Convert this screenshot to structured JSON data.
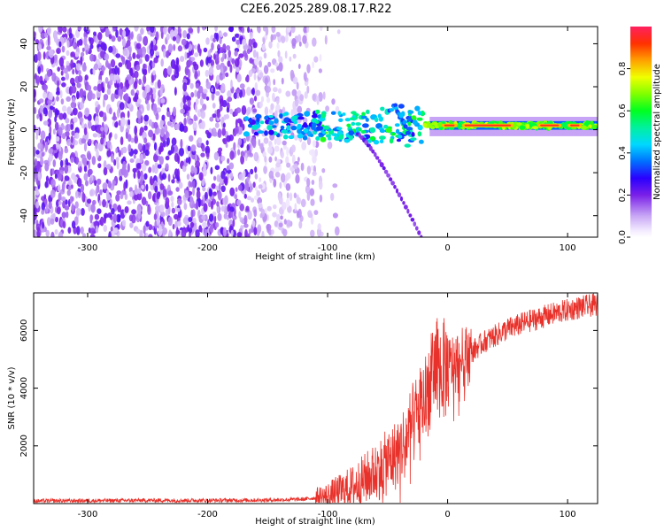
{
  "title": "C2E6.2025.289.08.17.R22",
  "chart_data": [
    {
      "type": "heatmap",
      "name": "spectrogram",
      "title": "C2E6.2025.289.08.17.R22",
      "xlabel": "Height of straight line (km)",
      "ylabel": "Frequency (Hz)",
      "xlim": [
        -345,
        125
      ],
      "ylim": [
        -50,
        48
      ],
      "xticks": [
        -300,
        -200,
        -100,
        0,
        100
      ],
      "yticks": [
        -40,
        -20,
        0,
        20,
        40
      ],
      "colorbar": {
        "label": "Normalized spectral amplitude",
        "range": [
          0.0,
          1.0
        ],
        "ticks": [
          0.0,
          0.2,
          0.4,
          0.6,
          0.8
        ],
        "tick_labels": [
          "0.0",
          "0.2",
          "0.4",
          "0.6",
          "0.8"
        ]
      },
      "features": [
        {
          "name": "noise-field",
          "x_range": [
            -345,
            -100
          ],
          "freq_range": [
            -50,
            48
          ],
          "amplitude": 0.05
        },
        {
          "name": "carrier-line",
          "x_range": [
            -170,
            125
          ],
          "freq": 2,
          "amplitude_range": [
            0.3,
            1.0
          ]
        },
        {
          "name": "doppler-branch-up",
          "x_start": -45,
          "x_end": -35,
          "freq_start": 12,
          "freq_end": 2
        },
        {
          "name": "doppler-branch-down",
          "x_start": -75,
          "x_end": -22,
          "freq_start": -2,
          "freq_end": -50
        }
      ]
    },
    {
      "type": "line",
      "name": "snr",
      "xlabel": "Height of straight line (km)",
      "ylabel": "SNR (10 * v/v)",
      "xlim": [
        -345,
        125
      ],
      "ylim": [
        0,
        7300
      ],
      "xticks": [
        -300,
        -200,
        -100,
        0,
        100
      ],
      "yticks": [
        2000,
        4000,
        6000
      ],
      "color": "#e8312a",
      "series": [
        {
          "name": "SNR",
          "x": [
            -345,
            -300,
            -250,
            -200,
            -150,
            -120,
            -100,
            -80,
            -60,
            -45,
            -35,
            -25,
            -15,
            -10,
            -5,
            0,
            5,
            10,
            20,
            30,
            50,
            70,
            90,
            110,
            125
          ],
          "y": [
            90,
            100,
            110,
            110,
            120,
            150,
            250,
            550,
            1100,
            1600,
            2200,
            3100,
            4100,
            4800,
            4600,
            4700,
            4850,
            4950,
            5250,
            5600,
            6050,
            6350,
            6600,
            6800,
            6900
          ]
        }
      ]
    }
  ]
}
